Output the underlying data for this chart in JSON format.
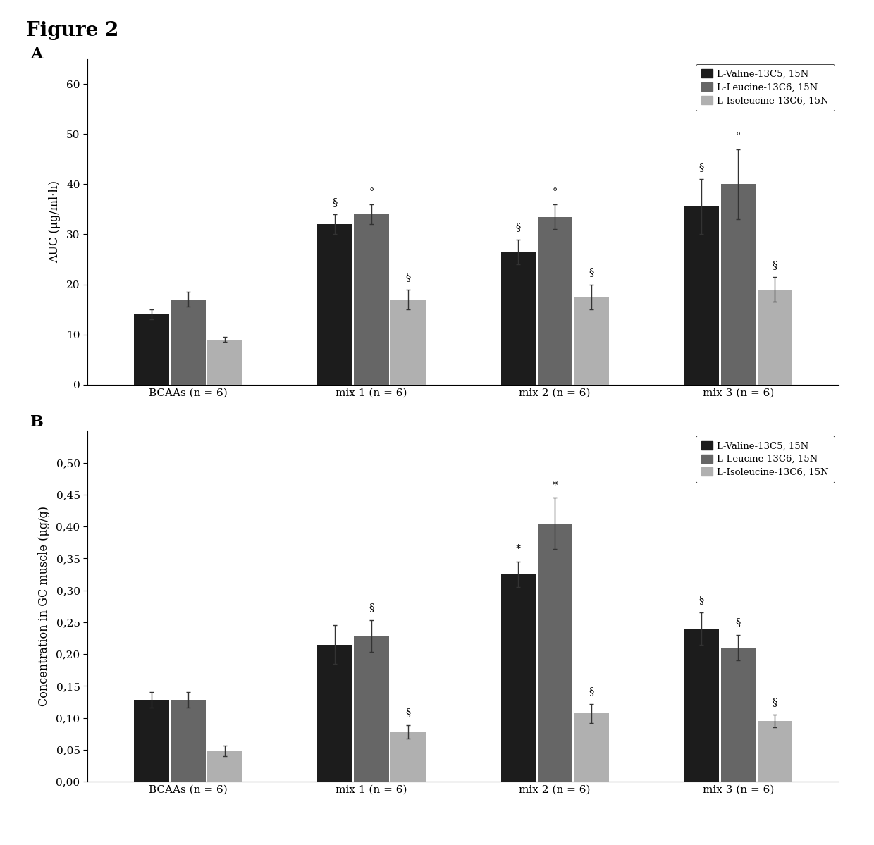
{
  "title": "Figure 2",
  "panel_A": {
    "label": "A",
    "ylabel": "AUC (μg/ml·h)",
    "yticks": [
      0,
      10,
      20,
      30,
      40,
      50,
      60
    ],
    "ylim": [
      0,
      65
    ],
    "groups": [
      "BCAAs (n = 6)",
      "mix 1 (n = 6)",
      "mix 2 (n = 6)",
      "mix 3 (n = 6)"
    ],
    "valine_values": [
      14.0,
      32.0,
      26.5,
      35.5
    ],
    "leucine_values": [
      17.0,
      34.0,
      33.5,
      40.0
    ],
    "isoleucine_values": [
      9.0,
      17.0,
      17.5,
      19.0
    ],
    "valine_errors": [
      1.0,
      2.0,
      2.5,
      5.5
    ],
    "leucine_errors": [
      1.5,
      2.0,
      2.5,
      7.0
    ],
    "isoleucine_errors": [
      0.5,
      2.0,
      2.5,
      2.5
    ],
    "annotations_valine": [
      "",
      "§",
      "§",
      "§"
    ],
    "annotations_leucine": [
      "",
      "°",
      "°",
      "°"
    ],
    "annotations_isoleucine": [
      "",
      "§",
      "§",
      "§"
    ]
  },
  "panel_B": {
    "label": "B",
    "ylabel": "Concentration in GC muscle (μg/g)",
    "yticks": [
      0.0,
      0.05,
      0.1,
      0.15,
      0.2,
      0.25,
      0.3,
      0.35,
      0.4,
      0.45,
      0.5
    ],
    "ylim": [
      0,
      0.55
    ],
    "groups": [
      "BCAAs (n = 6)",
      "mix 1 (n = 6)",
      "mix 2 (n = 6)",
      "mix 3 (n = 6)"
    ],
    "valine_values": [
      0.128,
      0.215,
      0.325,
      0.24
    ],
    "leucine_values": [
      0.128,
      0.228,
      0.405,
      0.21
    ],
    "isoleucine_values": [
      0.048,
      0.078,
      0.107,
      0.095
    ],
    "valine_errors": [
      0.012,
      0.03,
      0.02,
      0.025
    ],
    "leucine_errors": [
      0.012,
      0.025,
      0.04,
      0.02
    ],
    "isoleucine_errors": [
      0.008,
      0.01,
      0.015,
      0.01
    ],
    "annotations_valine": [
      "",
      "",
      "*",
      "§"
    ],
    "annotations_leucine": [
      "",
      "§",
      "*",
      "§"
    ],
    "annotations_isoleucine": [
      "",
      "§",
      "§",
      "§"
    ]
  },
  "legend_labels": [
    "L-Valine-13C5, 15N",
    "L-Leucine-13C6, 15N",
    "L-Isoleucine-13C6, 15N"
  ],
  "colors": {
    "valine": "#1c1c1c",
    "leucine": "#666666",
    "isoleucine": "#b0b0b0"
  },
  "bar_width": 0.2,
  "background_color": "#ffffff",
  "figure_bg": "#f5f5f5"
}
